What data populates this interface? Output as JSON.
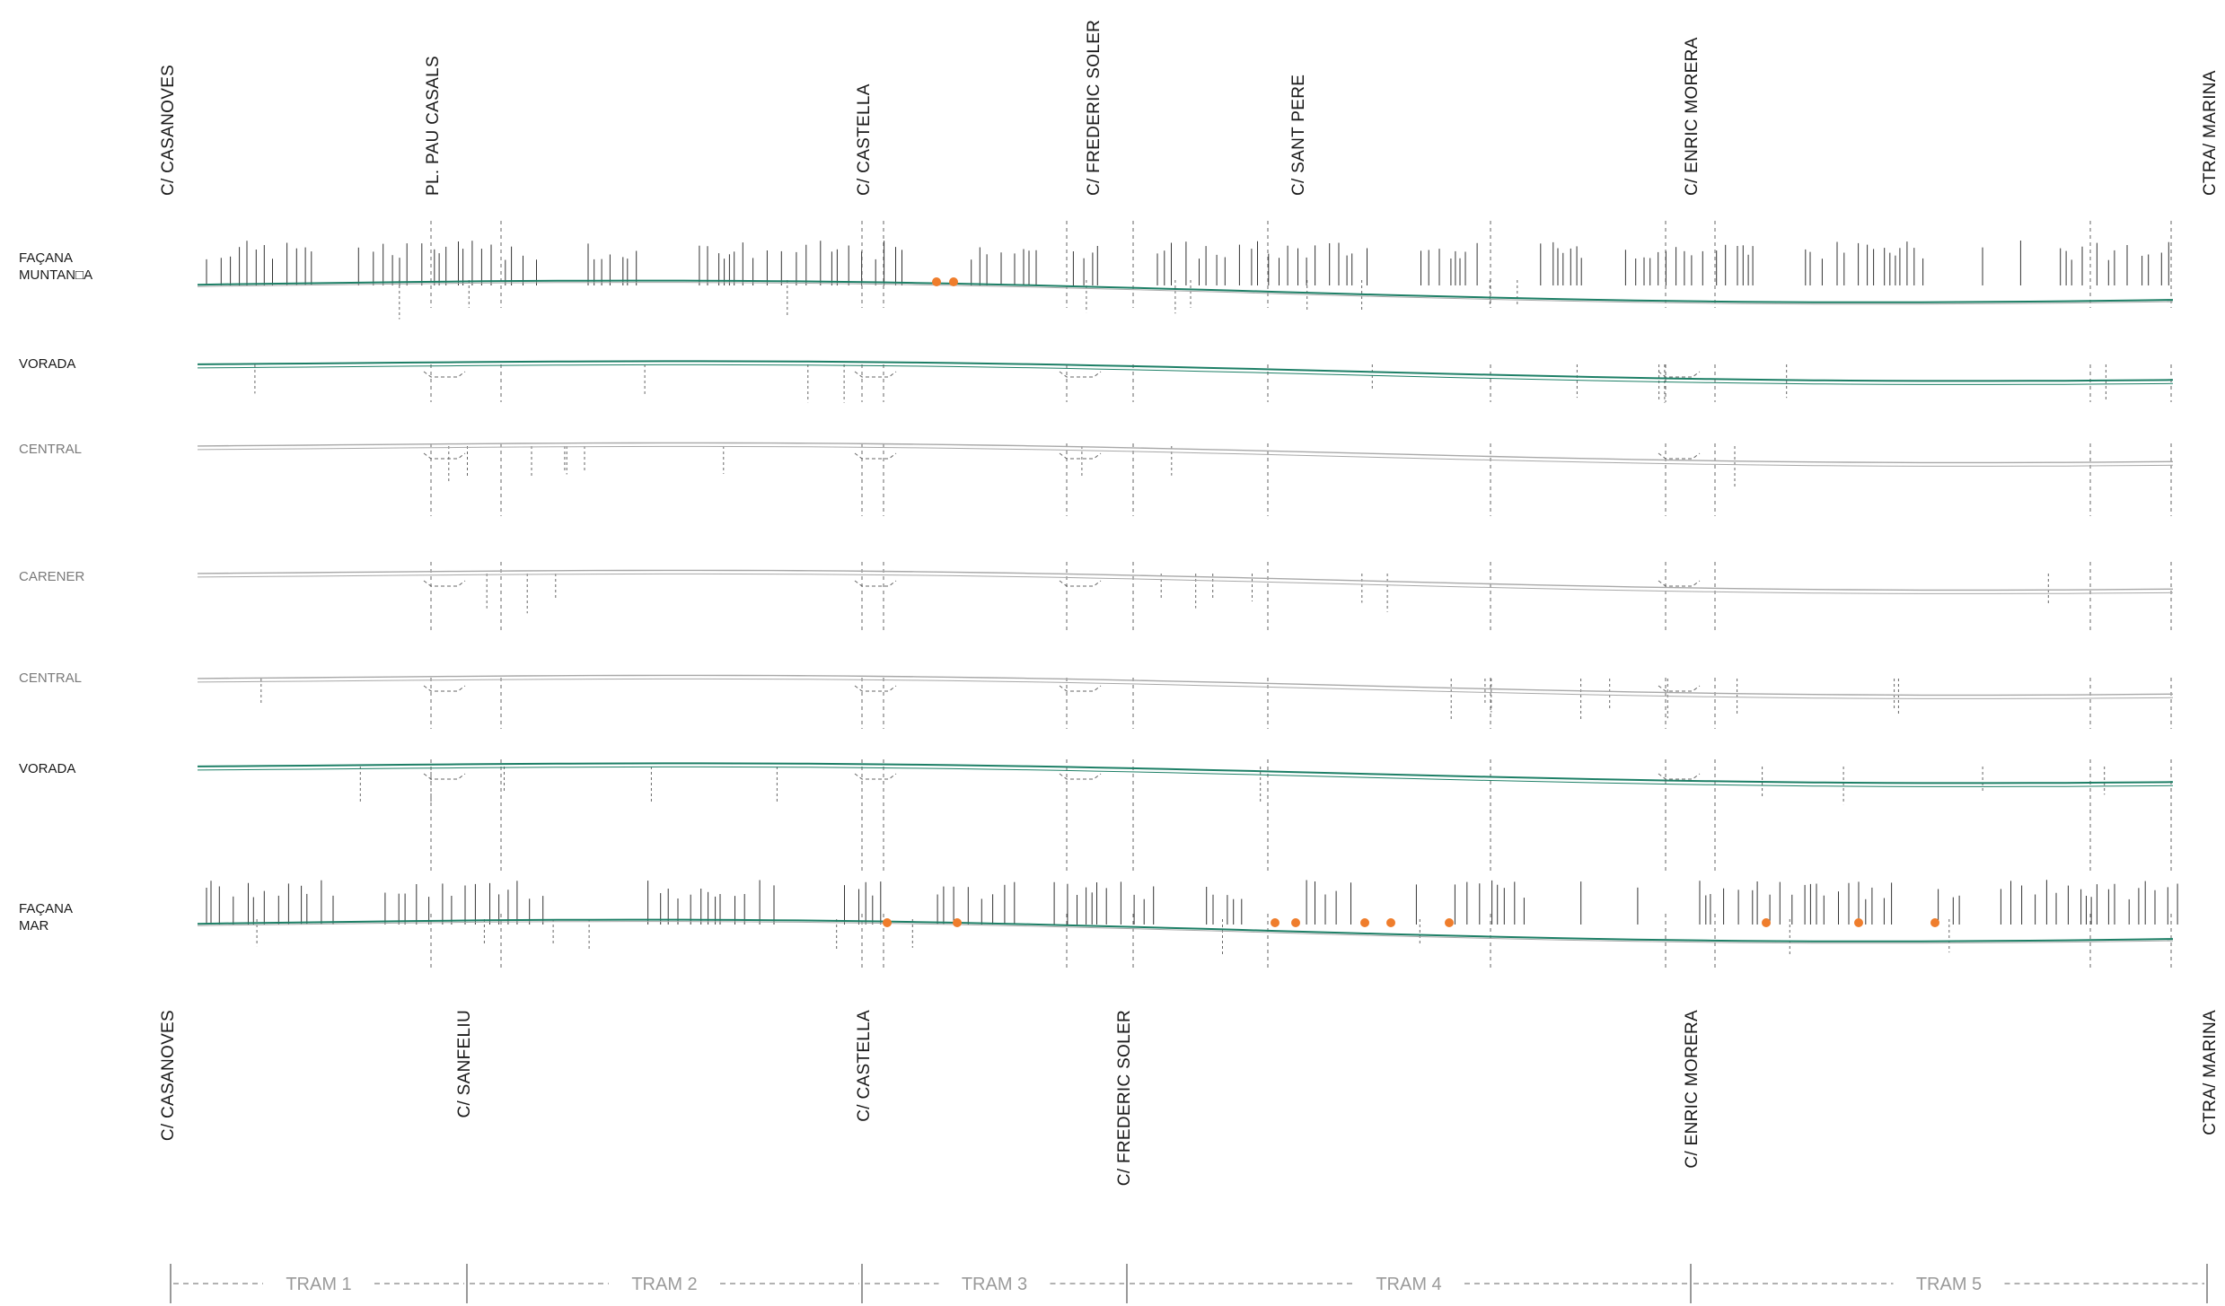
{
  "colors": {
    "green": "#1d7f66",
    "grey_line": "#a8a8a8",
    "dark": "#333333",
    "dash": "#666666",
    "orange": "#ef7d2c",
    "light_green": "#6cc070"
  },
  "streets_top": [
    {
      "label": "C/ CASANOVES"
    },
    {
      "label": "PL. PAU CASALS"
    },
    {
      "label": "C/ CASTELLA"
    },
    {
      "label": "C/ FREDERIC SOLER"
    },
    {
      "label": "C/ SANT PERE"
    },
    {
      "label": "C/ ENRIC MORERA"
    },
    {
      "label": "CTRA/ MARINA"
    }
  ],
  "streets_bottom": [
    {
      "label": "C/ CASANOVES"
    },
    {
      "label": "C/ SANFELIU"
    },
    {
      "label": "C/ CASTELLA"
    },
    {
      "label": "C/ FREDERIC SOLER"
    },
    {
      "label": "C/ ENRIC MORERA"
    },
    {
      "label": "CTRA/ MARINA"
    }
  ],
  "rows": [
    {
      "id": "facana-muntanya",
      "label_lines": [
        "FAÇANA",
        "MUNTAN□A"
      ],
      "style": "green",
      "label_color": "dark"
    },
    {
      "id": "vorada-top",
      "label_lines": [
        "VORADA"
      ],
      "style": "green",
      "label_color": "dark"
    },
    {
      "id": "central-top",
      "label_lines": [
        "CENTRAL"
      ],
      "style": "grey",
      "label_color": "grey"
    },
    {
      "id": "carener",
      "label_lines": [
        "CARENER"
      ],
      "style": "grey",
      "label_color": "grey"
    },
    {
      "id": "central-bottom",
      "label_lines": [
        "CENTRAL"
      ],
      "style": "grey",
      "label_color": "grey"
    },
    {
      "id": "vorada-bottom",
      "label_lines": [
        "VORADA"
      ],
      "style": "green",
      "label_color": "dark"
    },
    {
      "id": "facana-mar",
      "label_lines": [
        "FAÇANA",
        "MAR"
      ],
      "style": "green",
      "label_color": "dark"
    }
  ],
  "trams": [
    {
      "label": "TRAM 1"
    },
    {
      "label": "TRAM 2"
    },
    {
      "label": "TRAM 3"
    },
    {
      "label": "TRAM 4"
    },
    {
      "label": "TRAM 5"
    }
  ]
}
